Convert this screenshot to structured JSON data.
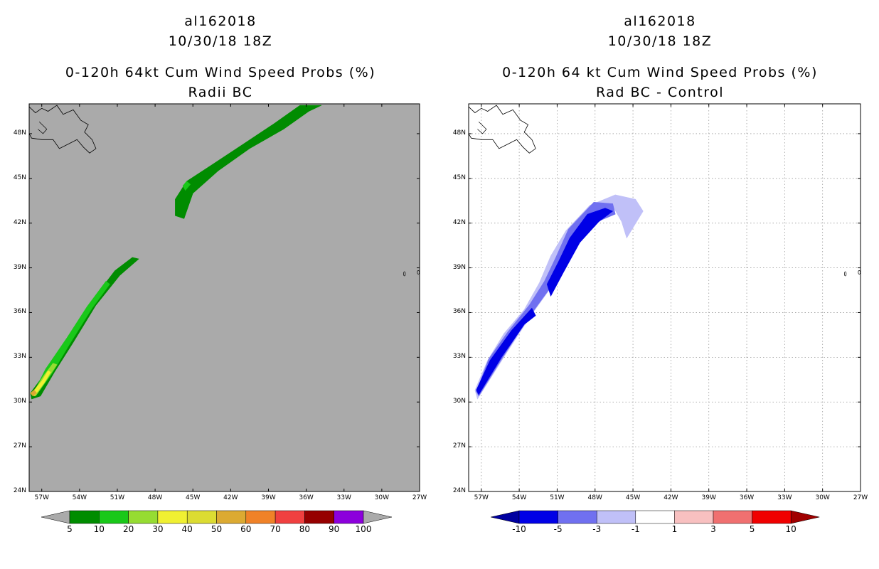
{
  "chart_data": [
    {
      "type": "heatmap",
      "title_lines": [
        "al162018",
        "10/30/18 18Z",
        "0-120h 64kt Cum Wind Speed Probs (%)",
        "Radii BC"
      ],
      "xlabel": "",
      "ylabel": "",
      "xlim": [
        -58,
        -27
      ],
      "ylim": [
        24,
        50
      ],
      "x_ticks": [
        "57W",
        "54W",
        "51W",
        "48W",
        "45W",
        "42W",
        "39W",
        "36W",
        "33W",
        "30W",
        "27W"
      ],
      "y_ticks": [
        "24N",
        "27N",
        "30N",
        "33N",
        "36N",
        "39N",
        "42N",
        "45N",
        "48N"
      ],
      "grid": false,
      "background": "#aaaaaa",
      "colorbar": {
        "labels": [
          "5",
          "10",
          "20",
          "30",
          "40",
          "50",
          "60",
          "70",
          "80",
          "90",
          "100"
        ],
        "colors": [
          "#008c00",
          "#19c819",
          "#96dc32",
          "#f0f032",
          "#dcdc32",
          "#dcaa32",
          "#f08228",
          "#f04040",
          "#960000",
          "#8c00dc"
        ],
        "end_color": "#aaaaaa"
      },
      "regions": [
        {
          "name": "ne-band",
          "prob_min": 5,
          "points": [
            [
              -45.7,
              42.3
            ],
            [
              -45.0,
              44.0
            ],
            [
              -43.0,
              45.5
            ],
            [
              -40.5,
              47.0
            ],
            [
              -37.8,
              48.3
            ],
            [
              -35.8,
              49.5
            ],
            [
              -34.8,
              49.9
            ],
            [
              -36.5,
              49.9
            ],
            [
              -38.5,
              48.7
            ],
            [
              -41.0,
              47.3
            ],
            [
              -43.5,
              45.9
            ],
            [
              -45.5,
              44.8
            ],
            [
              -46.4,
              43.6
            ],
            [
              -46.4,
              42.5
            ]
          ]
        },
        {
          "name": "ne-inner",
          "prob_min": 10,
          "points": [
            [
              -45.6,
              44.2
            ],
            [
              -45.2,
              44.6
            ],
            [
              -45.5,
              44.8
            ],
            [
              -45.8,
              44.5
            ]
          ]
        },
        {
          "name": "sw-band",
          "prob_min": 5,
          "points": [
            [
              -57.8,
              30.2
            ],
            [
              -57.1,
              30.4
            ],
            [
              -56.0,
              32.0
            ],
            [
              -54.5,
              34.0
            ],
            [
              -52.7,
              36.5
            ],
            [
              -50.8,
              38.5
            ],
            [
              -49.3,
              39.6
            ],
            [
              -49.8,
              39.7
            ],
            [
              -51.2,
              38.8
            ],
            [
              -53.0,
              36.8
            ],
            [
              -54.8,
              34.4
            ],
            [
              -56.5,
              32.2
            ],
            [
              -57.9,
              30.6
            ]
          ]
        },
        {
          "name": "sw-core",
          "prob_min": 10,
          "points": [
            [
              -57.4,
              30.5
            ],
            [
              -56.2,
              31.9
            ],
            [
              -54.7,
              34.0
            ],
            [
              -53.0,
              36.3
            ],
            [
              -51.6,
              37.9
            ],
            [
              -51.9,
              38.1
            ],
            [
              -53.4,
              36.4
            ],
            [
              -55.0,
              34.3
            ],
            [
              -56.7,
              32.2
            ],
            [
              -57.6,
              30.7
            ]
          ]
        },
        {
          "name": "sw-20",
          "prob_min": 20,
          "points": [
            [
              -57.5,
              30.4
            ],
            [
              -56.6,
              31.5
            ],
            [
              -55.8,
              32.5
            ],
            [
              -56.1,
              32.6
            ],
            [
              -56.9,
              31.7
            ],
            [
              -57.7,
              30.6
            ]
          ]
        },
        {
          "name": "sw-30",
          "prob_min": 30,
          "points": [
            [
              -57.6,
              30.4
            ],
            [
              -56.8,
              31.3
            ],
            [
              -56.3,
              32.0
            ],
            [
              -56.5,
              32.1
            ],
            [
              -57.0,
              31.4
            ],
            [
              -57.8,
              30.6
            ]
          ]
        },
        {
          "name": "sw-max",
          "prob_min": 50,
          "points": [
            [
              -57.7,
              30.4
            ],
            [
              -57.4,
              30.6
            ],
            [
              -57.6,
              30.8
            ],
            [
              -57.9,
              30.6
            ]
          ]
        }
      ]
    },
    {
      "type": "heatmap",
      "title_lines": [
        "al162018",
        "10/30/18 18Z",
        "0-120h 64 kt Cum Wind Speed Probs (%)",
        "Rad BC - Control"
      ],
      "xlabel": "",
      "ylabel": "",
      "xlim": [
        -58,
        -27
      ],
      "ylim": [
        24,
        50
      ],
      "x_ticks": [
        "57W",
        "54W",
        "51W",
        "48W",
        "45W",
        "42W",
        "39W",
        "36W",
        "33W",
        "30W",
        "27W"
      ],
      "y_ticks": [
        "24N",
        "27N",
        "30N",
        "33N",
        "36N",
        "39N",
        "42N",
        "45N",
        "48N"
      ],
      "grid": true,
      "background": "#ffffff",
      "colorbar": {
        "labels": [
          "-10",
          "-5",
          "-3",
          "-1",
          "1",
          "3",
          "5",
          "10"
        ],
        "colors": [
          "#0000e6",
          "#7070f0",
          "#c0c0f8",
          "#ffffff",
          "#f8c0c0",
          "#f07070",
          "#f00000"
        ],
        "start_color": "#0000a0",
        "end_color": "#a00000"
      },
      "regions": [
        {
          "name": "diff-outer",
          "diff_max": -1,
          "points": [
            [
              -57.3,
              30.2
            ],
            [
              -55.0,
              33.3
            ],
            [
              -53.0,
              35.9
            ],
            [
              -51.3,
              37.9
            ],
            [
              -49.5,
              40.6
            ],
            [
              -48.0,
              42.3
            ],
            [
              -46.5,
              43.0
            ],
            [
              -45.9,
              42.1
            ],
            [
              -45.5,
              41.0
            ],
            [
              -44.2,
              42.8
            ],
            [
              -44.8,
              43.6
            ],
            [
              -46.4,
              43.9
            ],
            [
              -48.4,
              43.2
            ],
            [
              -50.3,
              41.5
            ],
            [
              -51.5,
              39.8
            ],
            [
              -52.4,
              38.0
            ],
            [
              -53.6,
              36.2
            ],
            [
              -55.2,
              34.6
            ],
            [
              -56.5,
              32.8
            ],
            [
              -57.5,
              30.8
            ]
          ]
        },
        {
          "name": "diff-mid",
          "diff_max": -3,
          "points": [
            [
              -57.2,
              30.4
            ],
            [
              -55.3,
              33.0
            ],
            [
              -53.4,
              35.5
            ],
            [
              -51.6,
              37.6
            ],
            [
              -49.8,
              40.3
            ],
            [
              -48.1,
              42.0
            ],
            [
              -46.4,
              42.6
            ],
            [
              -46.6,
              43.3
            ],
            [
              -48.1,
              43.4
            ],
            [
              -50.1,
              41.6
            ],
            [
              -51.1,
              39.7
            ],
            [
              -52.0,
              38.1
            ],
            [
              -53.2,
              36.5
            ],
            [
              -54.9,
              34.7
            ],
            [
              -56.4,
              32.9
            ],
            [
              -57.4,
              30.7
            ]
          ]
        },
        {
          "name": "diff-core",
          "diff_max": -5,
          "points": [
            [
              -57.2,
              30.5
            ],
            [
              -55.4,
              33.0
            ],
            [
              -53.6,
              35.2
            ],
            [
              -52.7,
              35.8
            ],
            [
              -53.0,
              36.3
            ],
            [
              -54.6,
              34.8
            ],
            [
              -56.3,
              32.8
            ],
            [
              -57.4,
              30.8
            ]
          ]
        },
        {
          "name": "diff-core-north",
          "diff_max": -5,
          "points": [
            [
              -51.5,
              37.1
            ],
            [
              -50.5,
              38.7
            ],
            [
              -49.2,
              40.7
            ],
            [
              -47.7,
              42.1
            ],
            [
              -46.6,
              42.8
            ],
            [
              -47.2,
              43.0
            ],
            [
              -48.6,
              42.6
            ],
            [
              -50.0,
              41.0
            ],
            [
              -50.9,
              39.4
            ],
            [
              -51.8,
              37.9
            ]
          ]
        }
      ]
    }
  ]
}
